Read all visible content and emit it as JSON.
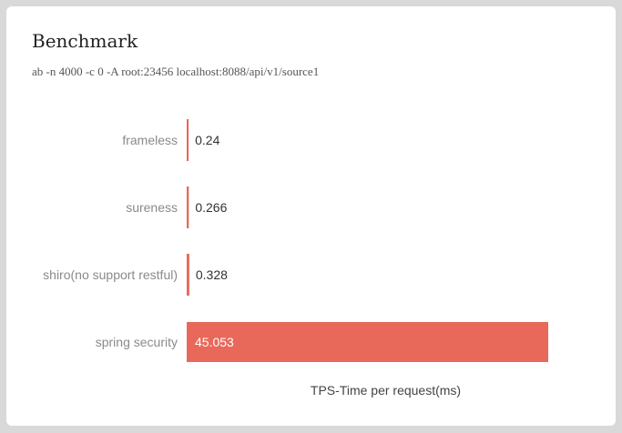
{
  "chart_data": {
    "type": "bar",
    "orientation": "horizontal",
    "title": "Benchmark",
    "subtitle": "ab -n 4000 -c 0 -A root:23456 localhost:8088/api/v1/source1",
    "categories": [
      "frameless",
      "sureness",
      "shiro(no support restful)",
      "spring security"
    ],
    "values": [
      0.24,
      0.266,
      0.328,
      45.053
    ],
    "value_labels": [
      "0.24",
      "0.266",
      "0.328",
      "45.053"
    ],
    "xlabel": "TPS-Time per request(ms)",
    "ylabel": "",
    "xlim": [
      0,
      45.053
    ],
    "grid": false,
    "legend": "none",
    "bar_color": "#e8695a"
  }
}
